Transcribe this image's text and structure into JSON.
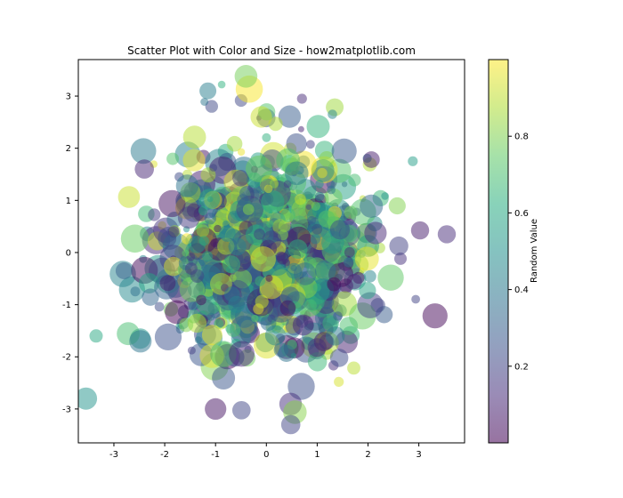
{
  "chart_data": {
    "type": "scatter",
    "title": "Scatter Plot with Color and Size - how2matplotlib.com",
    "xlabel": "",
    "ylabel": "",
    "xlim": [
      -3.7,
      3.9
    ],
    "ylim": [
      -3.65,
      3.7
    ],
    "xticks": [
      "-3",
      "-2",
      "-1",
      "0",
      "1",
      "2",
      "3"
    ],
    "yticks": [
      "-3",
      "-2",
      "-1",
      "0",
      "1",
      "2",
      "3"
    ],
    "grid": false,
    "n_points": 1000,
    "colormap": "viridis",
    "alpha": 0.5,
    "colorbar": {
      "label": "Random Value",
      "range": [
        0,
        1
      ],
      "ticks": [
        "0.2",
        "0.4",
        "0.6",
        "0.8"
      ]
    },
    "points_sample": [
      {
        "x": 3.55,
        "y": 0.35,
        "c": 0.12,
        "s": 0.55
      },
      {
        "x": -0.4,
        "y": 3.38,
        "c": 0.78,
        "s": 0.75
      },
      {
        "x": -1.15,
        "y": 3.1,
        "c": 0.42,
        "s": 0.5
      },
      {
        "x": 0.48,
        "y": -3.3,
        "c": 0.2,
        "s": 0.6
      },
      {
        "x": -1.0,
        "y": -3.0,
        "c": 0.05,
        "s": 0.7
      },
      {
        "x": -3.35,
        "y": -1.6,
        "c": 0.6,
        "s": 0.35
      },
      {
        "x": 2.88,
        "y": 1.75,
        "c": 0.55,
        "s": 0.2
      },
      {
        "x": -0.1,
        "y": 2.6,
        "c": 0.92,
        "s": 0.7
      },
      {
        "x": 0.7,
        "y": 2.95,
        "c": 0.12,
        "s": 0.2
      },
      {
        "x": 1.3,
        "y": 2.65,
        "c": 0.45,
        "s": 0.18
      },
      {
        "x": -2.4,
        "y": 1.6,
        "c": 0.1,
        "s": 0.6
      },
      {
        "x": -2.8,
        "y": -0.35,
        "c": 0.3,
        "s": 0.5
      }
    ]
  }
}
